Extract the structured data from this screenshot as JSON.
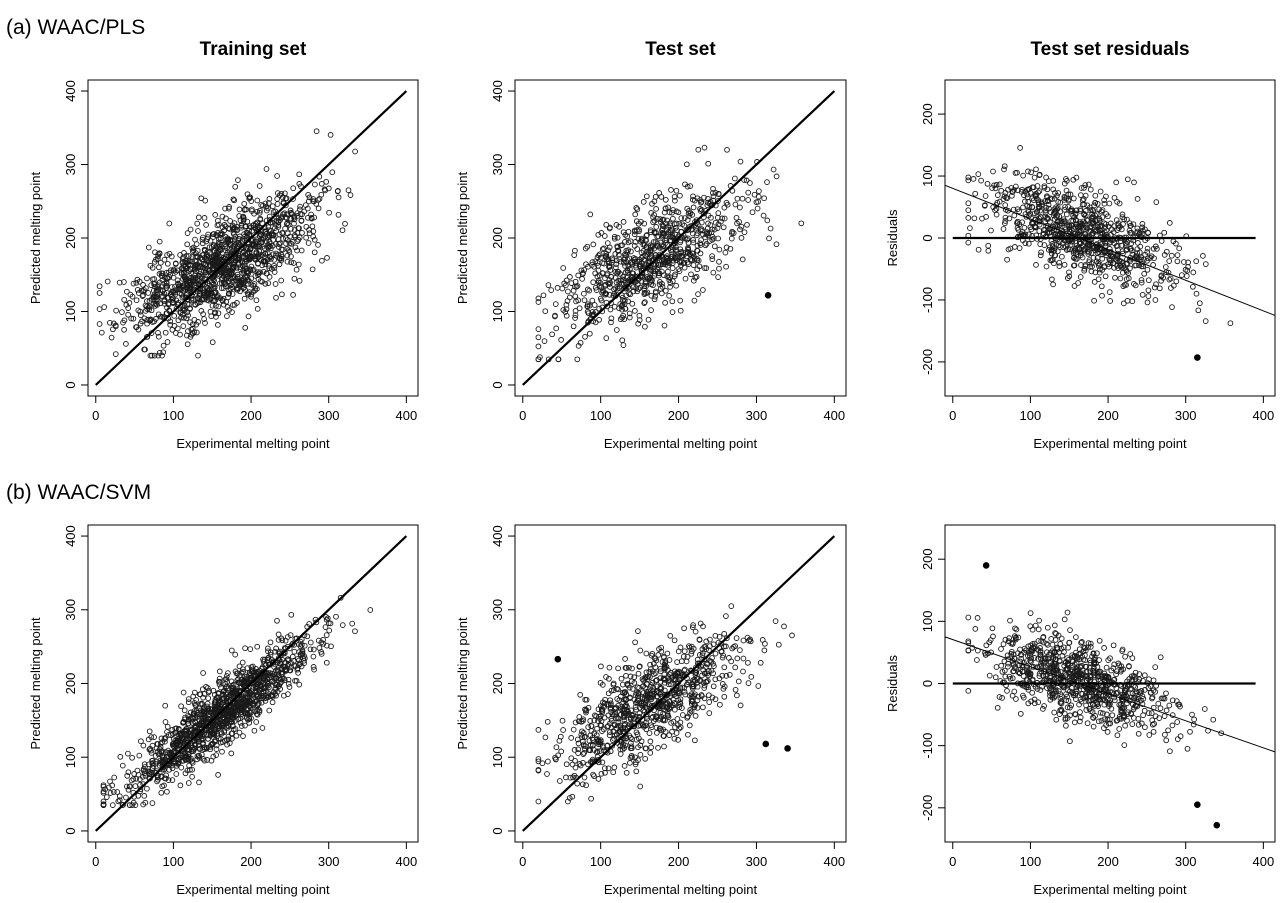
{
  "figure": {
    "row_labels": [
      "(a) WAAC/PLS",
      "(b) WAAC/SVM"
    ]
  },
  "chart_data": [
    {
      "type": "scatter",
      "row": 0,
      "col": 0,
      "title": "Training set",
      "xlabel": "Experimental melting point",
      "ylabel": "Predicted melting point",
      "xlim": [
        -10,
        415
      ],
      "ylim": [
        -15,
        415
      ],
      "xticks": [
        0,
        100,
        200,
        300,
        400
      ],
      "yticks": [
        0,
        100,
        200,
        300,
        400
      ],
      "grid": false,
      "point_cloud": {
        "n": 1300,
        "x_mean": 160,
        "x_sd": 60,
        "x_min": 5,
        "x_max": 395,
        "y_intercept": 75,
        "y_slope": 0.55,
        "y_noise_sd": 33,
        "y_min": 40,
        "y_max": 380,
        "seed": 11
      },
      "reference_lines": [
        {
          "x": [
            0,
            400
          ],
          "y": [
            0,
            400
          ],
          "width": 2.2
        }
      ],
      "highlighted_points": []
    },
    {
      "type": "scatter",
      "row": 0,
      "col": 1,
      "title": "Test set",
      "xlabel": "Experimental melting point",
      "ylabel": "Predicted melting point",
      "xlim": [
        -10,
        415
      ],
      "ylim": [
        -15,
        415
      ],
      "xticks": [
        0,
        100,
        200,
        300,
        400
      ],
      "yticks": [
        0,
        100,
        200,
        300,
        400
      ],
      "grid": false,
      "point_cloud": {
        "n": 850,
        "x_mean": 160,
        "x_sd": 58,
        "x_min": 20,
        "x_max": 390,
        "y_intercept": 80,
        "y_slope": 0.55,
        "y_noise_sd": 35,
        "y_min": 35,
        "y_max": 345,
        "seed": 23
      },
      "reference_lines": [
        {
          "x": [
            0,
            400
          ],
          "y": [
            0,
            400
          ],
          "width": 2.2
        }
      ],
      "highlighted_points": [
        {
          "x": 315,
          "y": 122
        }
      ]
    },
    {
      "type": "scatter",
      "row": 0,
      "col": 2,
      "title": "Test set residuals",
      "xlabel": "Experimental melting point",
      "ylabel": "Residuals",
      "xlim": [
        -10,
        415
      ],
      "ylim": [
        -255,
        255
      ],
      "xticks": [
        0,
        100,
        200,
        300,
        400
      ],
      "yticks": [
        -200,
        -100,
        0,
        100,
        200
      ],
      "grid": false,
      "point_cloud": {
        "n": 850,
        "x_mean": 160,
        "x_sd": 58,
        "x_min": 20,
        "x_max": 390,
        "y_intercept": 80,
        "y_slope": -0.45,
        "y_noise_sd": 35,
        "y_min": -185,
        "y_max": 185,
        "seed": 23
      },
      "reference_lines": [
        {
          "x": [
            0,
            390
          ],
          "y": [
            0,
            0
          ],
          "width": 2.2
        },
        {
          "x": [
            -10,
            415
          ],
          "y": [
            85,
            -125
          ],
          "width": 1
        }
      ],
      "highlighted_points": [
        {
          "x": 315,
          "y": -193
        }
      ]
    },
    {
      "type": "scatter",
      "row": 1,
      "col": 0,
      "title": "",
      "xlabel": "Experimental melting point",
      "ylabel": "Predicted melting point",
      "xlim": [
        -10,
        415
      ],
      "ylim": [
        -15,
        415
      ],
      "xticks": [
        0,
        100,
        200,
        300,
        400
      ],
      "yticks": [
        0,
        100,
        200,
        300,
        400
      ],
      "grid": false,
      "point_cloud": {
        "n": 1300,
        "x_mean": 160,
        "x_sd": 60,
        "x_min": 10,
        "x_max": 395,
        "y_intercept": 30,
        "y_slope": 0.8,
        "y_noise_sd": 22,
        "y_min": 35,
        "y_max": 345,
        "seed": 37
      },
      "reference_lines": [
        {
          "x": [
            0,
            400
          ],
          "y": [
            0,
            400
          ],
          "width": 2.2
        }
      ],
      "highlighted_points": []
    },
    {
      "type": "scatter",
      "row": 1,
      "col": 1,
      "title": "",
      "xlabel": "Experimental melting point",
      "ylabel": "Predicted melting point",
      "xlim": [
        -10,
        415
      ],
      "ylim": [
        -15,
        415
      ],
      "xticks": [
        0,
        100,
        200,
        300,
        400
      ],
      "yticks": [
        0,
        100,
        200,
        300,
        400
      ],
      "grid": false,
      "point_cloud": {
        "n": 850,
        "x_mean": 160,
        "x_sd": 58,
        "x_min": 20,
        "x_max": 390,
        "y_intercept": 80,
        "y_slope": 0.55,
        "y_noise_sd": 33,
        "y_min": 40,
        "y_max": 305,
        "seed": 51
      },
      "reference_lines": [
        {
          "x": [
            0,
            400
          ],
          "y": [
            0,
            400
          ],
          "width": 2.2
        }
      ],
      "highlighted_points": [
        {
          "x": 45,
          "y": 233
        },
        {
          "x": 312,
          "y": 118
        },
        {
          "x": 340,
          "y": 112
        }
      ]
    },
    {
      "type": "scatter",
      "row": 1,
      "col": 2,
      "title": "",
      "xlabel": "Experimental melting point",
      "ylabel": "Residuals",
      "xlim": [
        -10,
        415
      ],
      "ylim": [
        -255,
        255
      ],
      "xticks": [
        0,
        100,
        200,
        300,
        400
      ],
      "yticks": [
        -200,
        -100,
        0,
        100,
        200
      ],
      "grid": false,
      "point_cloud": {
        "n": 850,
        "x_mean": 160,
        "x_sd": 58,
        "x_min": 20,
        "x_max": 390,
        "y_intercept": 70,
        "y_slope": -0.42,
        "y_noise_sd": 32,
        "y_min": -180,
        "y_max": 150,
        "seed": 51
      },
      "reference_lines": [
        {
          "x": [
            0,
            390
          ],
          "y": [
            0,
            0
          ],
          "width": 2.2
        },
        {
          "x": [
            -10,
            415
          ],
          "y": [
            75,
            -110
          ],
          "width": 1
        }
      ],
      "highlighted_points": [
        {
          "x": 43,
          "y": 190
        },
        {
          "x": 315,
          "y": -195
        },
        {
          "x": 340,
          "y": -228
        }
      ]
    }
  ]
}
